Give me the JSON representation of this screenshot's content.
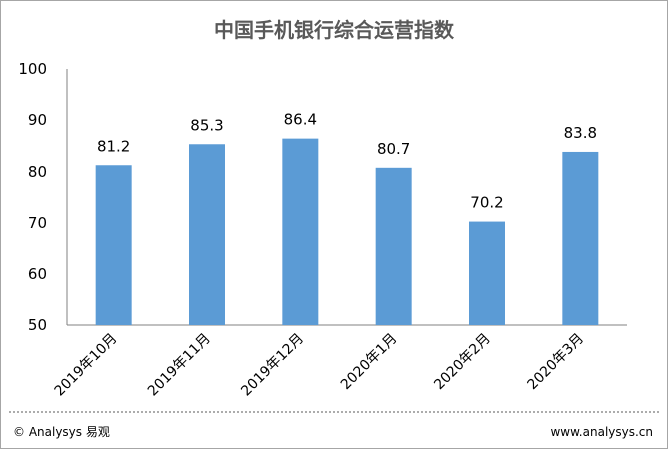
{
  "chart_data": {
    "type": "bar",
    "title": "中国手机银行综合运营指数",
    "categories": [
      "2019年10月",
      "2019年11月",
      "2019年12月",
      "2020年1月",
      "2020年2月",
      "2020年3月"
    ],
    "values": [
      81.2,
      85.3,
      86.4,
      80.7,
      70.2,
      83.8
    ],
    "data_labels": [
      "81.2",
      "85.3",
      "86.4",
      "80.7",
      "70.2",
      "83.8"
    ],
    "y_ticks": [
      "50",
      "60",
      "70",
      "80",
      "90",
      "100"
    ],
    "ylim": [
      50,
      100
    ],
    "xlabel": "",
    "ylabel": "",
    "grid": false,
    "bar_color": "#5b9bd5"
  },
  "footer": {
    "copyright": "© Analysys 易观",
    "website": "www.analysys.cn"
  }
}
